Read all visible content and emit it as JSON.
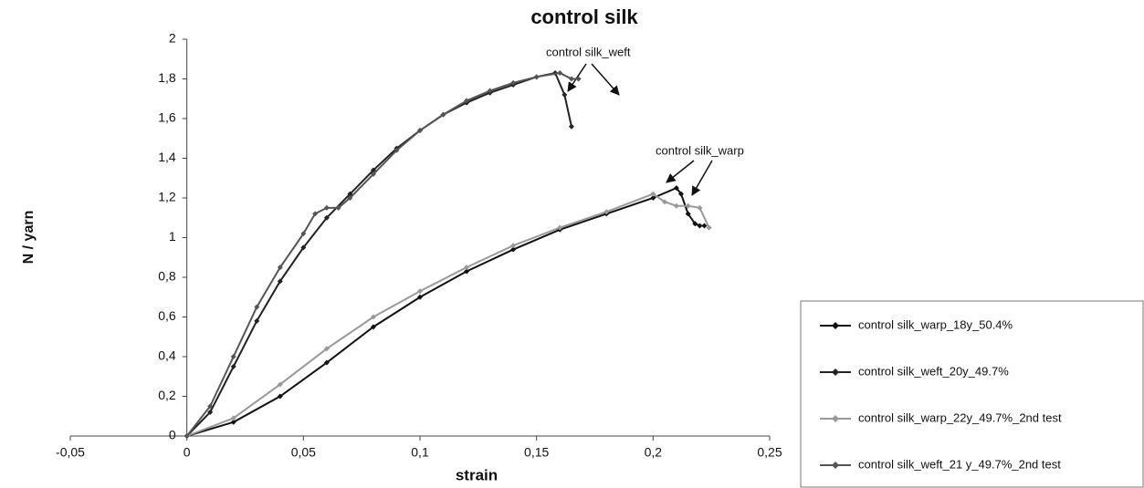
{
  "chart_data": {
    "type": "line",
    "title": "control silk",
    "xlabel": "strain",
    "ylabel": "N / yarn",
    "xlim": [
      -0.05,
      0.25
    ],
    "xticks": [
      {
        "value": -0.05,
        "label": "-0,05"
      },
      0,
      {
        "value": 0.05,
        "label": "0,05"
      },
      {
        "value": 0.1,
        "label": "0,1"
      },
      {
        "value": 0.15,
        "label": "0,15"
      },
      {
        "value": 0.2,
        "label": "0,2"
      },
      {
        "value": 0.25,
        "label": "0,25"
      }
    ],
    "ylim": [
      0,
      2
    ],
    "yticks": [
      0,
      {
        "value": 0.2,
        "label": "0,2"
      },
      {
        "value": 0.4,
        "label": "0,4"
      },
      {
        "value": 0.6,
        "label": "0,6"
      },
      {
        "value": 0.8,
        "label": "0,8"
      },
      1,
      {
        "value": 1.2,
        "label": "1,2"
      },
      {
        "value": 1.4,
        "label": "1,4"
      },
      {
        "value": 1.6,
        "label": "1,6"
      },
      {
        "value": 1.8,
        "label": "1,8"
      },
      2
    ],
    "legend": "bottom-right",
    "annotations": [
      "control silk_weft",
      "control silk_warp"
    ],
    "series": [
      {
        "name": "control silk_warp_18y_50.4%",
        "color": "#111111",
        "x": [
          0,
          0.02,
          0.04,
          0.06,
          0.08,
          0.1,
          0.12,
          0.14,
          0.16,
          0.18,
          0.2,
          0.21,
          0.212,
          0.215,
          0.218,
          0.22,
          0.222
        ],
        "values": [
          0,
          0.07,
          0.2,
          0.37,
          0.55,
          0.7,
          0.83,
          0.94,
          1.04,
          1.12,
          1.2,
          1.25,
          1.22,
          1.12,
          1.07,
          1.06,
          1.06
        ]
      },
      {
        "name": "control silk_weft_20y_49.7%",
        "color": "#222222",
        "x": [
          0,
          0.01,
          0.02,
          0.03,
          0.04,
          0.05,
          0.06,
          0.07,
          0.08,
          0.09,
          0.1,
          0.11,
          0.12,
          0.13,
          0.14,
          0.15,
          0.158,
          0.162,
          0.165
        ],
        "values": [
          0,
          0.12,
          0.35,
          0.58,
          0.78,
          0.95,
          1.1,
          1.22,
          1.34,
          1.45,
          1.54,
          1.62,
          1.68,
          1.73,
          1.77,
          1.81,
          1.83,
          1.72,
          1.56
        ]
      },
      {
        "name": "control silk_warp_22y_49.7%_2nd test",
        "color": "#999999",
        "x": [
          0,
          0.02,
          0.04,
          0.06,
          0.08,
          0.1,
          0.12,
          0.14,
          0.16,
          0.18,
          0.2,
          0.205,
          0.21,
          0.215,
          0.22,
          0.224
        ],
        "values": [
          0,
          0.09,
          0.26,
          0.44,
          0.6,
          0.73,
          0.85,
          0.96,
          1.05,
          1.13,
          1.22,
          1.18,
          1.16,
          1.16,
          1.15,
          1.05
        ]
      },
      {
        "name": "control silk_weft_21 y_49.7%_2nd test",
        "color": "#555555",
        "x": [
          0,
          0.01,
          0.02,
          0.03,
          0.04,
          0.05,
          0.055,
          0.06,
          0.065,
          0.07,
          0.08,
          0.09,
          0.1,
          0.11,
          0.12,
          0.13,
          0.14,
          0.15,
          0.16,
          0.165,
          0.168
        ],
        "values": [
          0,
          0.15,
          0.4,
          0.65,
          0.85,
          1.02,
          1.12,
          1.15,
          1.15,
          1.2,
          1.32,
          1.44,
          1.54,
          1.62,
          1.69,
          1.74,
          1.78,
          1.81,
          1.83,
          1.8,
          1.8
        ]
      }
    ]
  }
}
